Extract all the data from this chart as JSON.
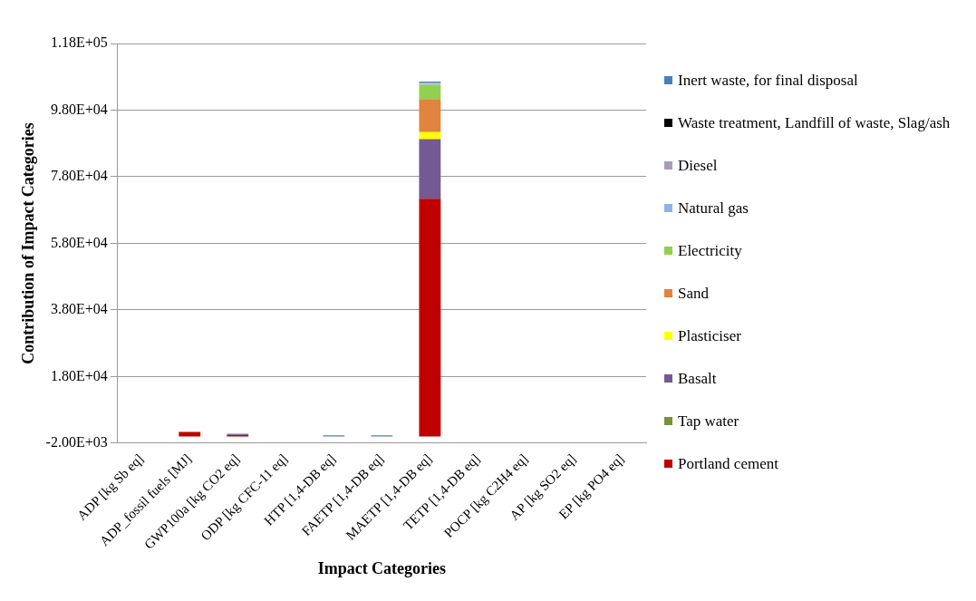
{
  "chart_data": {
    "type": "bar",
    "stacked": true,
    "xlabel": "Impact Categories",
    "ylabel": "Contribution of Impact Categories",
    "categories": [
      "ADP [kg Sb eq]",
      "ADP_fossil fuels [MJ]",
      "GWP100a [kg CO2 eq]",
      "ODP [kg CFC-11 eq]",
      "HTP [1,4-DB eq]",
      "FAETP [1,4-DB eq]",
      "MAETP [1,4-DB eq]",
      "TETP [1,4-DB eq]",
      "POCP [kg C2H4 eq]",
      "AP [kg SO2 eq]",
      "EP [kg PO4 eq]"
    ],
    "ylim": [
      -2000,
      118000
    ],
    "yticks": [
      {
        "value": -2000,
        "label": "-2.00E+03"
      },
      {
        "value": 18000,
        "label": "1.80E+04"
      },
      {
        "value": 38000,
        "label": "3.80E+04"
      },
      {
        "value": 58000,
        "label": "5.80E+04"
      },
      {
        "value": 78000,
        "label": "7.80E+04"
      },
      {
        "value": 98000,
        "label": "9.80E+04"
      },
      {
        "value": 118000,
        "label": "1.18E+05"
      }
    ],
    "grid": "y",
    "legend": "right",
    "series": [
      {
        "name": "Portland cement",
        "color": "#c00000",
        "values": [
          0,
          1200,
          500,
          0,
          0,
          0,
          71400,
          0,
          0,
          0,
          0
        ]
      },
      {
        "name": "Tap water",
        "color": "#77933c",
        "values": [
          0,
          0,
          0,
          0,
          0,
          0,
          0,
          0,
          0,
          0,
          0
        ]
      },
      {
        "name": "Basalt",
        "color": "#735a92",
        "values": [
          0,
          0,
          0,
          0,
          0,
          0,
          17900,
          0,
          0,
          0,
          0
        ]
      },
      {
        "name": "Plasticiser",
        "color": "#ffff00",
        "values": [
          0,
          0,
          0,
          0,
          0,
          0,
          2100,
          0,
          0,
          0,
          0
        ]
      },
      {
        "name": "Sand",
        "color": "#e0843f",
        "values": [
          0,
          300,
          0,
          0,
          0,
          0,
          9900,
          0,
          0,
          0,
          0
        ]
      },
      {
        "name": "Electricity",
        "color": "#92d050",
        "values": [
          0,
          0,
          0,
          0,
          0,
          0,
          4300,
          0,
          0,
          0,
          0
        ]
      },
      {
        "name": "Natural gas",
        "color": "#8db3e2",
        "values": [
          0,
          0,
          0,
          0,
          0,
          0,
          300,
          0,
          0,
          0,
          0
        ]
      },
      {
        "name": "Diesel",
        "color": "#a99bbd",
        "values": [
          0,
          0,
          0,
          0,
          0,
          0,
          300,
          0,
          0,
          0,
          0
        ]
      },
      {
        "name": "Waste treatment, Landfill of waste, Slag/ash",
        "color": "#000000",
        "values": [
          0,
          0,
          0,
          0,
          0,
          0,
          0,
          0,
          0,
          0,
          0
        ]
      },
      {
        "name": "Inert waste, for final disposal",
        "color": "#4a7ebb",
        "values": [
          0,
          0,
          300,
          0,
          300,
          300,
          400,
          0,
          0,
          0,
          0
        ]
      }
    ]
  }
}
